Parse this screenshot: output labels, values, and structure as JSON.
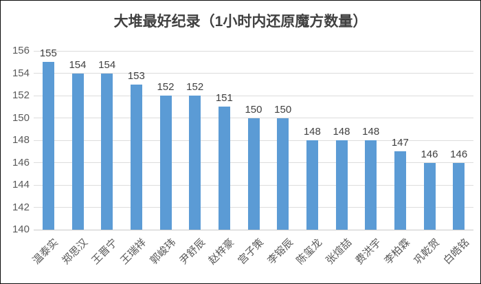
{
  "chart_data": {
    "type": "bar",
    "title": "大堆最好纪录（1小时内还原魔方数量）",
    "categories": [
      "温泰实",
      "郑思汉",
      "王晋宁",
      "王瑞祥",
      "郭峻玮",
      "尹舒辰",
      "赵梓豪",
      "宫子策",
      "李镕辰",
      "陈玺龙",
      "张煊喆",
      "费洪宇",
      "李柏霖",
      "巩乾贺",
      "白皓铭"
    ],
    "values": [
      155,
      154,
      154,
      153,
      152,
      152,
      151,
      150,
      150,
      148,
      148,
      148,
      147,
      146,
      146
    ],
    "ylim": [
      140,
      156
    ],
    "yticks": [
      140,
      142,
      144,
      146,
      148,
      150,
      152,
      154,
      156
    ],
    "xlabel": "",
    "ylabel": "",
    "legend_shown": false,
    "data_labels_shown": true,
    "grid": "horizontal"
  },
  "colors": {
    "bar": "#5B9BD5",
    "gridline": "#DCDCDC",
    "axis_line": "#C8C8C8",
    "axis_text": "#595959",
    "data_label_text": "#404040",
    "title_text": "#404040",
    "border": "#0A0A0A",
    "background": "#FFFFFF"
  }
}
